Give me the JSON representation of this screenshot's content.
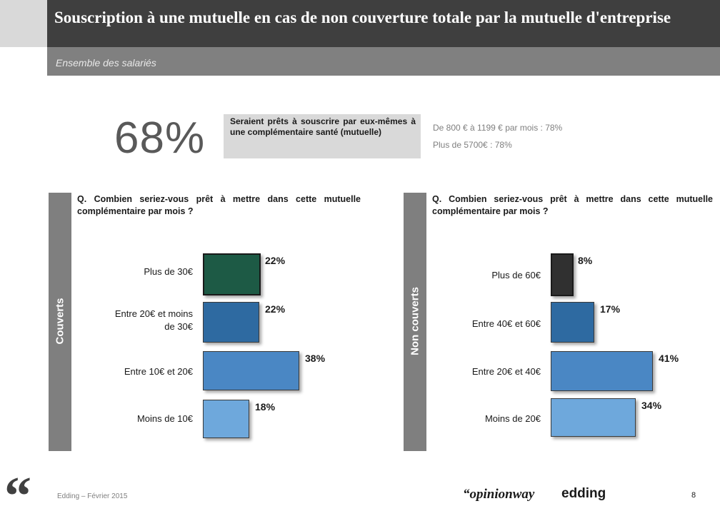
{
  "header": {
    "title": "Souscription à une mutuelle en cas de non couverture totale par la mutuelle d'entreprise",
    "subtitle": "Ensemble des salariés"
  },
  "highlight": {
    "value": "68%",
    "text": "Seraient prêts à souscrire par eux-mêmes à une complémentaire santé (mutuelle)",
    "details": [
      "De 800 € à 1199 € par mois : 78%",
      "Plus de 5700€ : 78%"
    ]
  },
  "chart_data": [
    {
      "type": "bar",
      "panel_label": "Couverts",
      "question": "Q. Combien seriez-vous prêt à mettre dans cette mutuelle complémentaire par mois ?",
      "categories": [
        "Plus de 30€",
        "Entre 20€ et moins de 30€",
        "Entre 10€ et 20€",
        "Moins de 10€"
      ],
      "values": [
        22,
        22,
        38,
        18
      ],
      "labels": [
        "22%",
        "22%",
        "38%",
        "18%"
      ],
      "colors": [
        "#1d5a45",
        "#2e6aa1",
        "#4a87c4",
        "#6ea8dc"
      ]
    },
    {
      "type": "bar",
      "panel_label": "Non couverts",
      "question": "Q. Combien seriez-vous prêt à mettre dans cette mutuelle complémentaire par mois ?",
      "categories": [
        "Plus de 60€",
        "Entre 40€ et 60€",
        "Entre 20€ et 40€",
        "Moins de 20€"
      ],
      "values": [
        8,
        17,
        41,
        34
      ],
      "labels": [
        "8%",
        "17%",
        "41%",
        "34%"
      ],
      "colors": [
        "#303030",
        "#2e6aa1",
        "#4a87c4",
        "#6ea8dc"
      ]
    }
  ],
  "footer": {
    "quote_mark": "“",
    "source": "Edding – Février 2015",
    "logo_opinion": "“opinionway",
    "logo_edding": "edding",
    "page": "8"
  }
}
